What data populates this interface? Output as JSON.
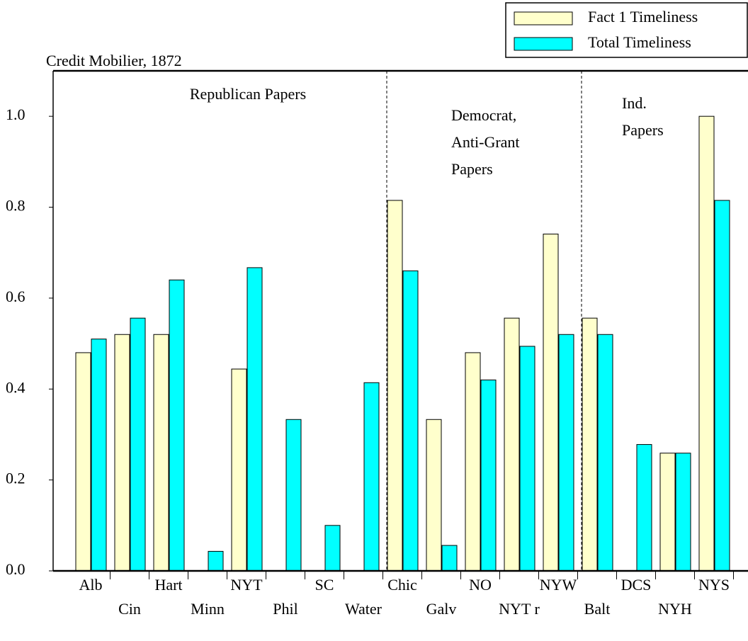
{
  "chart_data": {
    "type": "bar",
    "title": "Credit Mobilier, 1872",
    "categories": [
      "Alb",
      "Cin",
      "Hart",
      "Minn",
      "NYT",
      "Phil",
      "SC",
      "Water",
      "Chic",
      "Galv",
      "NO",
      "NYT r",
      "NYW",
      "Balt",
      "DCS",
      "NYH",
      "NYS"
    ],
    "series": [
      {
        "name": "Fact 1 Timeliness",
        "color": "#ffffcc",
        "values": [
          0.48,
          0.52,
          0.52,
          0,
          0.444,
          0,
          0,
          0,
          0.815,
          0.333,
          0.48,
          0.556,
          0.741,
          0.556,
          0,
          0.259,
          1.0
        ]
      },
      {
        "name": "Total Timeliness",
        "color": "#00ffff",
        "values": [
          0.51,
          0.556,
          0.64,
          0.043,
          0.667,
          0.333,
          0.1,
          0.414,
          0.66,
          0.056,
          0.42,
          0.494,
          0.52,
          0.52,
          0.278,
          0.259,
          0.815
        ]
      }
    ],
    "ylim": [
      0,
      1.1
    ],
    "yticks": [
      {
        "value": 0,
        "label": "0.0"
      },
      {
        "value": 0.2,
        "label": "0.2"
      },
      {
        "value": 0.4,
        "label": "0.4"
      },
      {
        "value": 0.6,
        "label": "0.6"
      },
      {
        "value": 0.8,
        "label": "0.8"
      },
      {
        "value": 1.0,
        "label": "1.0"
      }
    ],
    "annotations": [
      [
        "Republican Papers"
      ],
      [
        "Democrat,",
        "Anti-Grant",
        "Papers"
      ],
      [
        "Ind.",
        "Papers"
      ]
    ]
  }
}
